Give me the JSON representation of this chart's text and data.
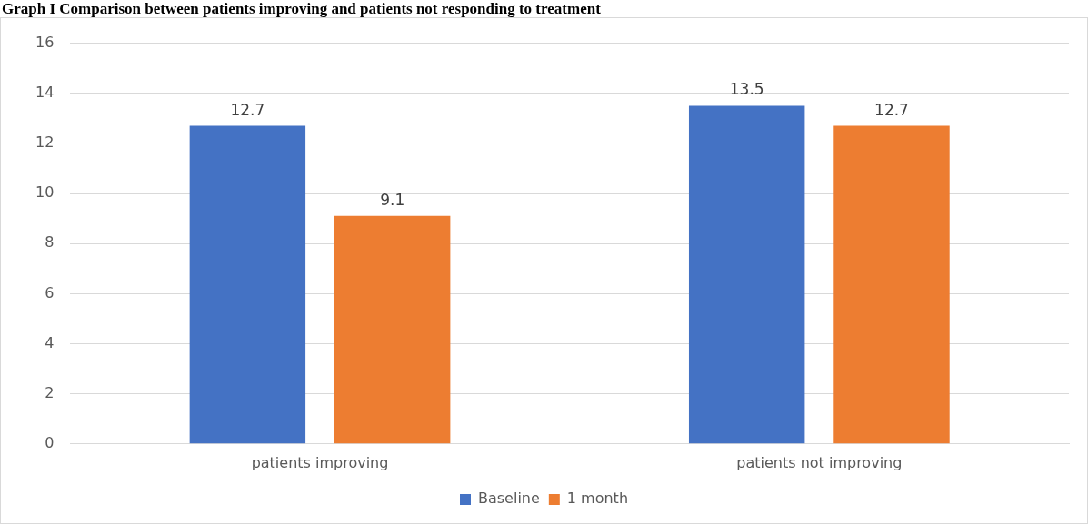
{
  "chart_data": {
    "type": "bar",
    "title": "Graph I Comparison between patients improving and patients not responding to treatment",
    "categories": [
      "patients improving",
      "patients not improving"
    ],
    "series": [
      {
        "name": "Baseline",
        "color": "#4472c4",
        "values": [
          12.7,
          13.5
        ]
      },
      {
        "name": "1 month",
        "color": "#ed7d31",
        "values": [
          9.1,
          12.7
        ]
      }
    ],
    "ylim": [
      0,
      16
    ],
    "yticks": [
      0,
      2,
      4,
      6,
      8,
      10,
      12,
      14,
      16
    ],
    "grid": "y",
    "legend": "bottom",
    "data_labels": true
  }
}
